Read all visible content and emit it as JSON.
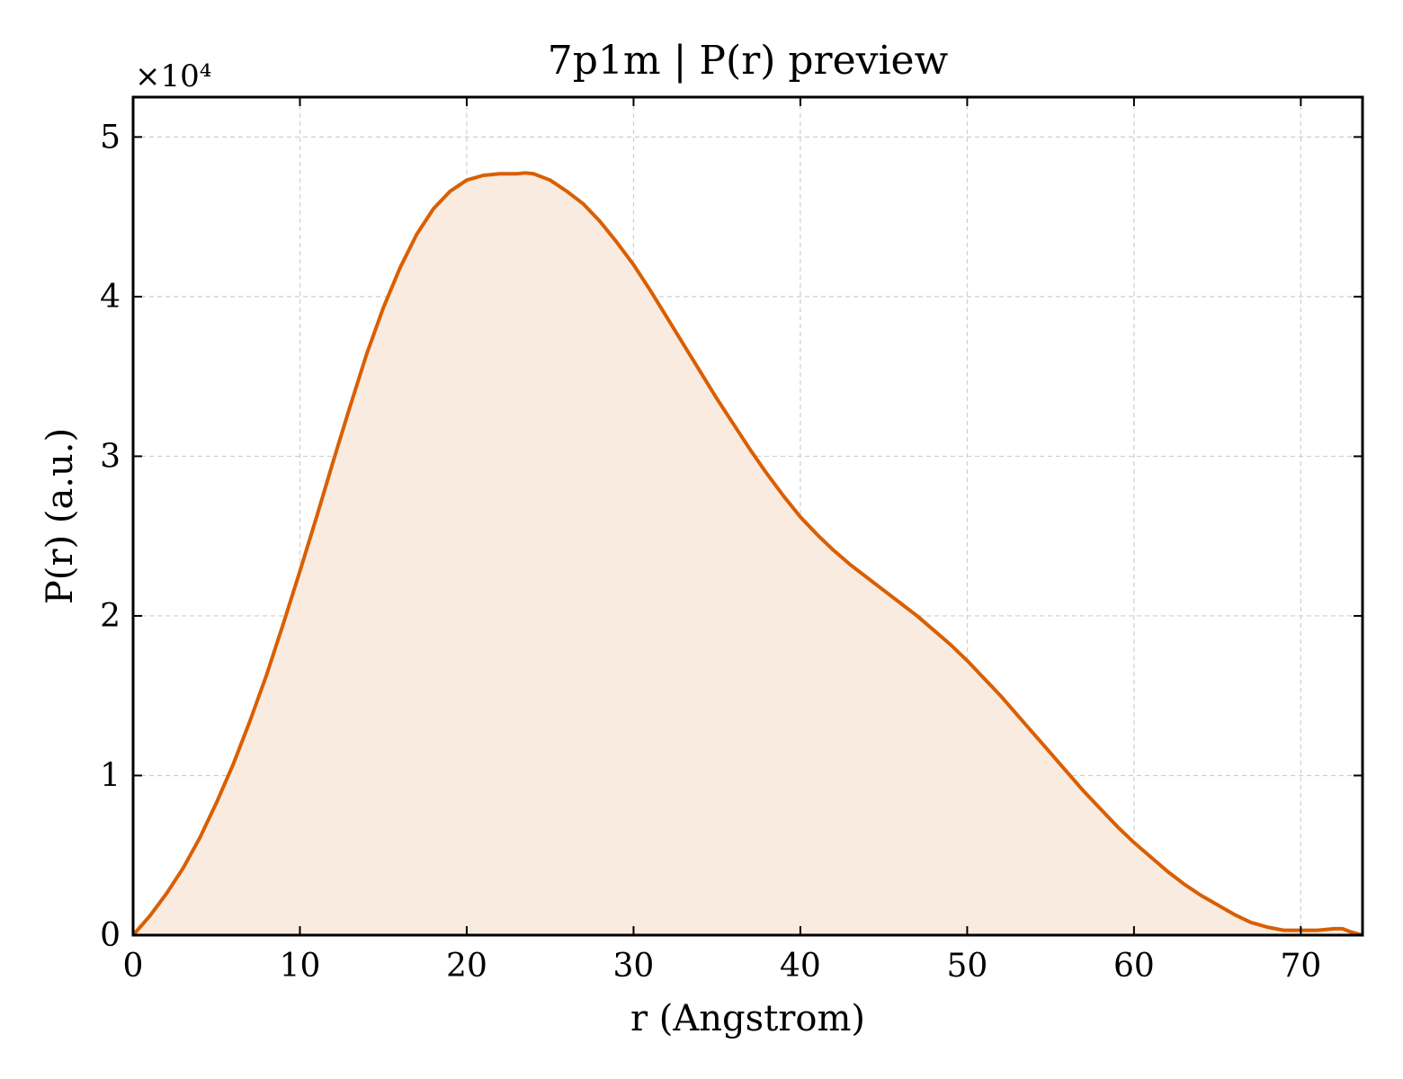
{
  "chart_data": {
    "type": "area",
    "title": "7p1m | P(r) preview",
    "xlabel": "r (Angstrom)",
    "ylabel": "P(r) (a.u.)",
    "y_multiplier_label": "×10⁴",
    "xlim": [
      0,
      73.7
    ],
    "ylim": [
      0,
      5.25
    ],
    "x_ticks": [
      0,
      10,
      20,
      30,
      40,
      50,
      60,
      70
    ],
    "y_ticks": [
      0,
      1,
      2,
      3,
      4,
      5
    ],
    "grid": true,
    "line_color": "#d95f02",
    "fill_color": "#f9ebe0",
    "series": [
      {
        "x": [
          0,
          1,
          2,
          3,
          4,
          5,
          6,
          7,
          8,
          9,
          10,
          11,
          12,
          13,
          14,
          15,
          16,
          17,
          18,
          19,
          20,
          21,
          22,
          23,
          23.5,
          24,
          25,
          26,
          27,
          28,
          29,
          30,
          31,
          32,
          33,
          34,
          35,
          36,
          37,
          38,
          39,
          40,
          41,
          42,
          43,
          44,
          45,
          46,
          47,
          48,
          49,
          50,
          51,
          52,
          53,
          54,
          55,
          56,
          57,
          58,
          59,
          60,
          61,
          62,
          63,
          64,
          65,
          66,
          67,
          68,
          69,
          70,
          71,
          72,
          72.5,
          73,
          73.7
        ],
        "y": [
          0.0,
          0.12,
          0.26,
          0.42,
          0.61,
          0.83,
          1.07,
          1.34,
          1.63,
          1.95,
          2.28,
          2.62,
          2.97,
          3.31,
          3.64,
          3.93,
          4.18,
          4.39,
          4.55,
          4.66,
          4.73,
          4.76,
          4.77,
          4.77,
          4.775,
          4.77,
          4.73,
          4.66,
          4.58,
          4.47,
          4.34,
          4.2,
          4.04,
          3.87,
          3.7,
          3.53,
          3.36,
          3.2,
          3.04,
          2.89,
          2.75,
          2.62,
          2.51,
          2.41,
          2.32,
          2.24,
          2.16,
          2.08,
          2.0,
          1.91,
          1.82,
          1.72,
          1.61,
          1.5,
          1.38,
          1.26,
          1.14,
          1.02,
          0.9,
          0.79,
          0.68,
          0.58,
          0.49,
          0.4,
          0.32,
          0.25,
          0.19,
          0.13,
          0.08,
          0.05,
          0.03,
          0.03,
          0.03,
          0.04,
          0.04,
          0.02,
          0.0
        ]
      }
    ]
  }
}
